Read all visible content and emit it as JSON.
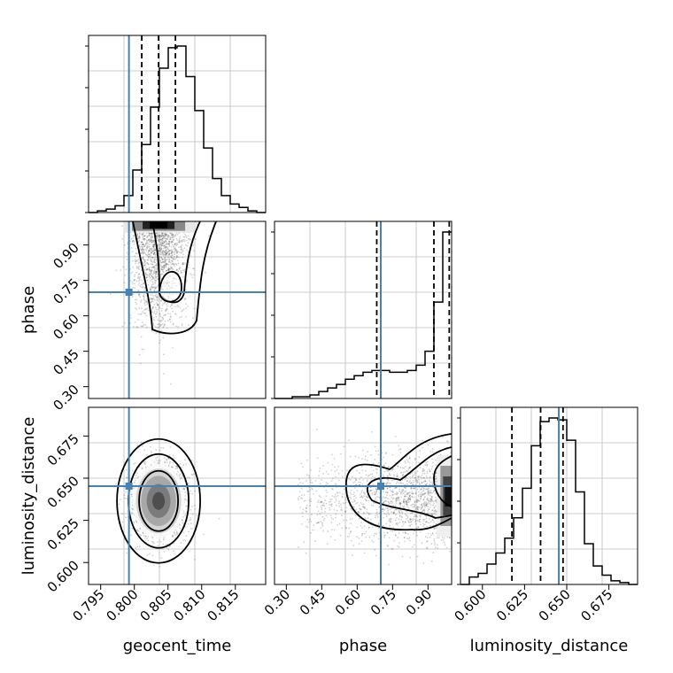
{
  "chart_data": {
    "type": "corner",
    "parameters": [
      "geocent_time",
      "phase",
      "luminosity_distance"
    ],
    "truths": {
      "geocent_time": 0.7992,
      "phase": 0.7,
      "luminosity_distance": 0.6453
    },
    "truth_color": "#4682b4",
    "grid": true,
    "ranges": {
      "geocent_time": [
        0.7932,
        0.8195
      ],
      "phase": [
        0.25,
        1.0
      ],
      "luminosity_distance": [
        0.587,
        0.692
      ]
    },
    "ticks": {
      "geocent_time": {
        "values": [
          0.795,
          0.8,
          0.805,
          0.81,
          0.815
        ],
        "labels": [
          "0.795",
          "0.800",
          "0.805",
          "0.810",
          "0.815"
        ]
      },
      "phase": {
        "values": [
          0.3,
          0.45,
          0.6,
          0.75,
          0.9
        ],
        "labels": [
          "0.30",
          "0.45",
          "0.60",
          "0.75",
          "0.90"
        ]
      },
      "luminosity_distance": {
        "values": [
          0.6,
          0.625,
          0.65,
          0.675
        ],
        "labels": [
          "0.600",
          "0.625",
          "0.650",
          "0.675"
        ]
      }
    },
    "quantiles": {
      "geocent_time": [
        0.8011,
        0.8036,
        0.8061
      ],
      "phase": [
        0.683,
        0.925,
        0.99
      ],
      "luminosity_distance": [
        0.6175,
        0.6345,
        0.6478
      ]
    },
    "histograms": {
      "geocent_time": {
        "edges_range": [
          0.7932,
          0.8195
        ],
        "counts": [
          0,
          1,
          2,
          4,
          10,
          25,
          40,
          62,
          85,
          97,
          98,
          80,
          60,
          38,
          20,
          10,
          5,
          3,
          1,
          0
        ]
      },
      "phase": {
        "edges_range": [
          0.25,
          1.0
        ],
        "counts": [
          0,
          0,
          1,
          1,
          2,
          4,
          6,
          8,
          11,
          13,
          15,
          16,
          16,
          15,
          15,
          16,
          19,
          27,
          55,
          95
        ]
      },
      "luminosity_distance": {
        "edges_range": [
          0.587,
          0.692
        ],
        "counts": [
          0,
          4,
          6,
          11,
          17,
          25,
          36,
          52,
          75,
          88,
          90,
          89,
          78,
          50,
          22,
          10,
          5,
          2,
          1,
          0
        ]
      }
    },
    "contours_2d": {
      "phase_vs_geocent_time": {
        "peak": [
          0.803,
          0.99
        ]
      },
      "luminosity_distance_vs_geocent_time": {
        "peak": [
          0.8035,
          0.6365
        ]
      },
      "luminosity_distance_vs_phase": {
        "peak": [
          0.99,
          0.6395
        ]
      }
    }
  }
}
